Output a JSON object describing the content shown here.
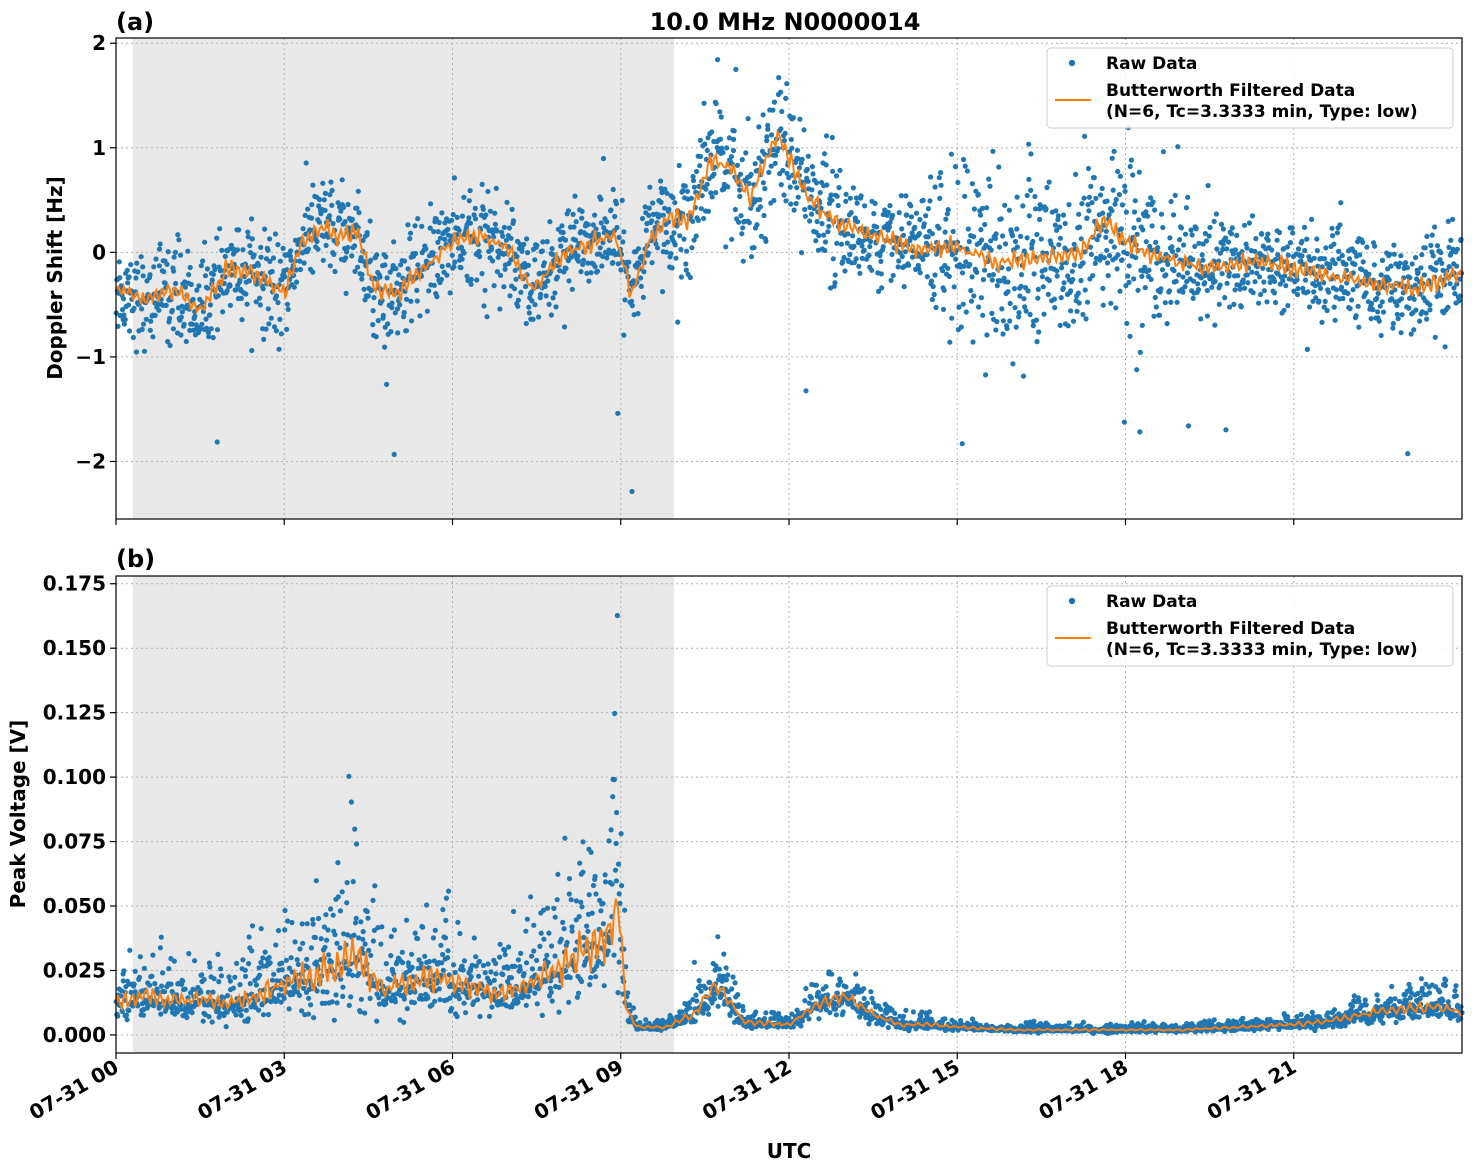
{
  "figure": {
    "title": "10.0 MHz N0000014",
    "xlabel": "UTC"
  },
  "chart_data": [
    {
      "type": "scatter",
      "panel_label": "(a)",
      "ylabel": "Doppler Shift [Hz]",
      "ylim": [
        -2.55,
        2.05
      ],
      "yticks": [
        -2,
        -1,
        0,
        1,
        2
      ],
      "ytick_labels": [
        "−2",
        "−1",
        "0",
        "1",
        "2"
      ],
      "xlim_hours": [
        0,
        24
      ],
      "xticks_hours": [
        0,
        3,
        6,
        9,
        12,
        15,
        18,
        21
      ],
      "shaded_hours": [
        0.3,
        9.95
      ],
      "grid": true,
      "legend_position": "upper-right",
      "legend": [
        "Raw Data",
        "Butterworth Filtered Data\n(N=6, Tc=3.3333 min, Type: low)"
      ],
      "series": [
        {
          "name": "Raw Data",
          "kind": "points",
          "color": "#1f77b4",
          "spread_note": "dense scatter around filtered curve"
        },
        {
          "name": "Butterworth Filtered Data (N=6, Tc=3.3333 min, Type: low)",
          "kind": "line",
          "color": "#ff7f0e",
          "x": [
            0,
            0.5,
            1.0,
            1.5,
            2.0,
            2.5,
            3.0,
            3.3,
            3.7,
            4.0,
            4.3,
            4.6,
            5.0,
            5.5,
            6.0,
            6.5,
            7.0,
            7.4,
            7.7,
            8.0,
            8.5,
            8.9,
            9.2,
            9.5,
            9.9,
            10.2,
            10.6,
            11.0,
            11.3,
            11.8,
            12.3,
            12.8,
            13.5,
            14.3,
            15.0,
            15.7,
            16.5,
            17.2,
            17.6,
            18.0,
            18.6,
            19.4,
            20.3,
            21.0,
            21.8,
            22.5,
            23.2,
            24.0
          ],
          "y": [
            -0.35,
            -0.45,
            -0.35,
            -0.55,
            -0.15,
            -0.2,
            -0.4,
            0.1,
            0.25,
            0.15,
            0.2,
            -0.35,
            -0.4,
            -0.15,
            0.1,
            0.15,
            0.05,
            -0.35,
            -0.2,
            0.0,
            0.1,
            0.15,
            -0.4,
            0.1,
            0.35,
            0.3,
            0.9,
            0.8,
            0.5,
            1.15,
            0.55,
            0.3,
            0.15,
            0.05,
            0.05,
            -0.1,
            -0.05,
            0.0,
            0.3,
            0.1,
            -0.05,
            -0.15,
            -0.1,
            -0.15,
            -0.25,
            -0.3,
            -0.35,
            -0.2
          ]
        }
      ]
    },
    {
      "type": "scatter",
      "panel_label": "(b)",
      "ylabel": "Peak Voltage [V]",
      "ylim": [
        -0.007,
        0.178
      ],
      "yticks": [
        0.0,
        0.025,
        0.05,
        0.075,
        0.1,
        0.125,
        0.15,
        0.175
      ],
      "ytick_labels": [
        "0.000",
        "0.025",
        "0.050",
        "0.075",
        "0.100",
        "0.125",
        "0.150",
        "0.175"
      ],
      "xlim_hours": [
        0,
        24
      ],
      "xticks_hours": [
        0,
        3,
        6,
        9,
        12,
        15,
        18,
        21
      ],
      "xtick_labels": [
        "07-31 00",
        "07-31 03",
        "07-31 06",
        "07-31 09",
        "07-31 12",
        "07-31 15",
        "07-31 18",
        "07-31 21"
      ],
      "shaded_hours": [
        0.3,
        9.95
      ],
      "grid": true,
      "legend_position": "upper-right",
      "legend": [
        "Raw Data",
        "Butterworth Filtered Data\n(N=6, Tc=3.3333 min, Type: low)"
      ],
      "series": [
        {
          "name": "Raw Data",
          "kind": "points",
          "color": "#1f77b4"
        },
        {
          "name": "Butterworth Filtered Data (N=6, Tc=3.3333 min, Type: low)",
          "kind": "line",
          "color": "#ff7f0e",
          "x": [
            0,
            0.5,
            1.0,
            1.5,
            2.0,
            2.5,
            3.0,
            3.5,
            4.0,
            4.3,
            4.8,
            5.3,
            5.8,
            6.3,
            6.8,
            7.3,
            7.8,
            8.2,
            8.6,
            8.95,
            9.1,
            9.3,
            9.8,
            10.3,
            10.7,
            11.2,
            12.0,
            12.5,
            13.0,
            13.5,
            14.0,
            14.5,
            15.0,
            16.0,
            17.0,
            18.0,
            19.0,
            20.0,
            21.0,
            21.5,
            22.0,
            22.5,
            23.0,
            23.5,
            24.0
          ],
          "y": [
            0.012,
            0.015,
            0.013,
            0.014,
            0.012,
            0.015,
            0.02,
            0.022,
            0.028,
            0.03,
            0.018,
            0.02,
            0.022,
            0.02,
            0.016,
            0.02,
            0.025,
            0.03,
            0.035,
            0.05,
            0.01,
            0.003,
            0.003,
            0.008,
            0.02,
            0.005,
            0.004,
            0.012,
            0.015,
            0.008,
            0.004,
            0.004,
            0.003,
            0.002,
            0.002,
            0.002,
            0.002,
            0.003,
            0.004,
            0.005,
            0.007,
            0.009,
            0.01,
            0.011,
            0.009
          ]
        }
      ]
    }
  ]
}
